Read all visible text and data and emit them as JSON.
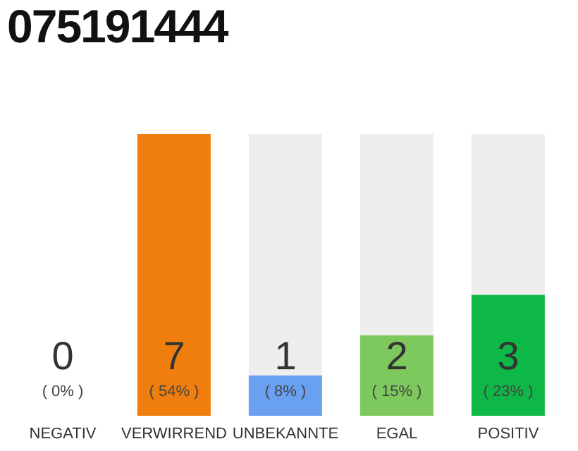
{
  "chart_data": {
    "type": "bar",
    "title": "075191444",
    "categories": [
      "NEGATIV",
      "VERWIRREND",
      "UNBEKANNTE",
      "EGAL",
      "POSITIV"
    ],
    "values": [
      0,
      7,
      1,
      2,
      3
    ],
    "colors": [
      "#cccccc",
      "#f07e0e",
      "#6aa0f0",
      "#7ec95e",
      "#0db846"
    ],
    "ylim": [
      0,
      7
    ],
    "tick_labels": "x",
    "data_labels": true,
    "annotations": [
      "( 0% )",
      "( 54% )",
      "( 8% )",
      "( 15% )",
      "( 23% )"
    ]
  }
}
